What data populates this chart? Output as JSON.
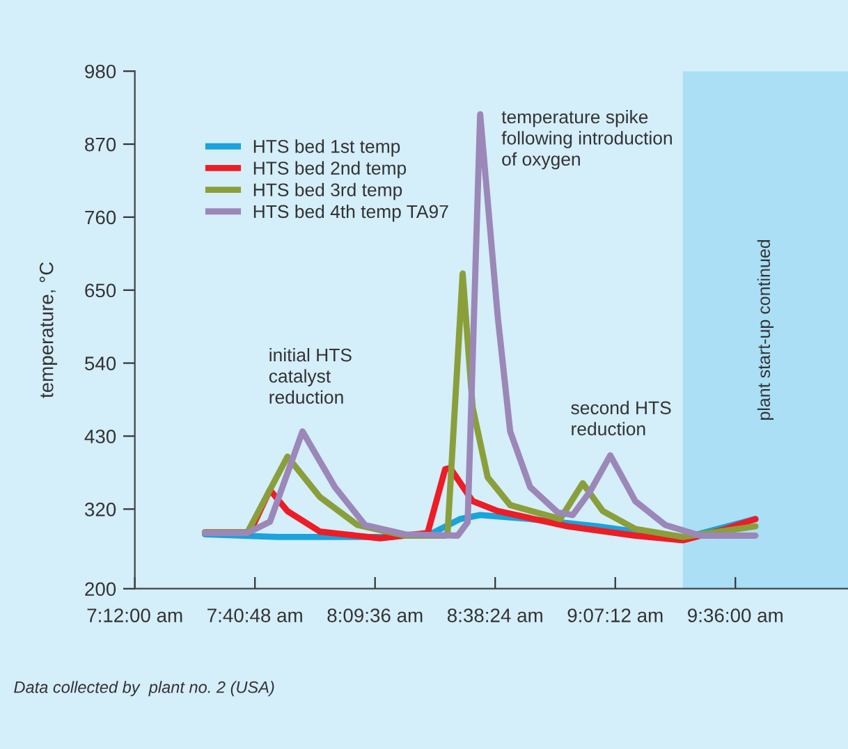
{
  "chart_data": {
    "type": "line",
    "ylabel": "temperature, °C",
    "xlim": [
      7.2,
      10.05
    ],
    "ylim": [
      200,
      980
    ],
    "xticks": [
      {
        "value": 7.2,
        "label": "7:12:00 am"
      },
      {
        "value": 7.68,
        "label": "7:40:48 am"
      },
      {
        "value": 8.16,
        "label": "8:09:36 am"
      },
      {
        "value": 8.64,
        "label": "8:38:24 am"
      },
      {
        "value": 9.12,
        "label": "9:07:12 am"
      },
      {
        "value": 9.6,
        "label": "9:36:00 am"
      }
    ],
    "yticks": [
      200,
      320,
      430,
      540,
      650,
      760,
      870,
      980
    ],
    "grid": false,
    "legend": "top left",
    "marker": "none",
    "line_style": "solid",
    "series": [
      {
        "name": "HTS bed 1st temp",
        "color": "#1aa3dc",
        "x": [
          7.48,
          7.77,
          8.22,
          8.39,
          8.5,
          8.58,
          8.78,
          9.05,
          9.39,
          9.68
        ],
        "values": [
          282,
          278,
          278,
          284,
          305,
          311,
          305,
          294,
          276,
          305
        ]
      },
      {
        "name": "HTS bed 2nd temp",
        "color": "#ee1c25",
        "x": [
          7.48,
          7.66,
          7.74,
          7.81,
          7.94,
          8.18,
          8.37,
          8.44,
          8.46,
          8.55,
          8.65,
          8.93,
          9.2,
          9.39,
          9.56,
          9.68
        ],
        "values": [
          285,
          285,
          349,
          317,
          286,
          276,
          284,
          380,
          382,
          332,
          317,
          294,
          280,
          273,
          290,
          305
        ]
      },
      {
        "name": "HTS bed 3rd temp",
        "color": "#8a9f3a",
        "x": [
          7.48,
          7.65,
          7.81,
          7.94,
          8.09,
          8.28,
          8.44,
          8.45,
          8.51,
          8.55,
          8.61,
          8.7,
          8.9,
          8.99,
          9.07,
          9.2,
          9.39,
          9.68
        ],
        "values": [
          285,
          285,
          399,
          338,
          296,
          280,
          280,
          285,
          675,
          473,
          368,
          326,
          305,
          359,
          317,
          290,
          278,
          294
        ]
      },
      {
        "name": "HTS bed 4th temp TA97",
        "color": "#9b87b8",
        "x": [
          7.48,
          7.65,
          7.74,
          7.87,
          8.0,
          8.12,
          8.28,
          8.49,
          8.53,
          8.58,
          8.65,
          8.7,
          8.78,
          8.89,
          8.95,
          9.02,
          9.1,
          9.2,
          9.32,
          9.46,
          9.68
        ],
        "values": [
          284,
          284,
          301,
          437,
          353,
          296,
          282,
          280,
          300,
          915,
          611,
          437,
          353,
          315,
          311,
          347,
          401,
          332,
          296,
          280,
          280
        ]
      }
    ],
    "bands": [
      {
        "axis": "x",
        "from": 9.39,
        "to": 10.05,
        "label": "plant start-up continued",
        "color": "#aadff5"
      }
    ],
    "annotations": [
      "initial HTS\ncatalyst\nreduction",
      "temperature spike\nfollowing introduction\nof oxygen",
      "second HTS\nreduction",
      "Data collected by  plant no. 2 (USA)"
    ]
  }
}
